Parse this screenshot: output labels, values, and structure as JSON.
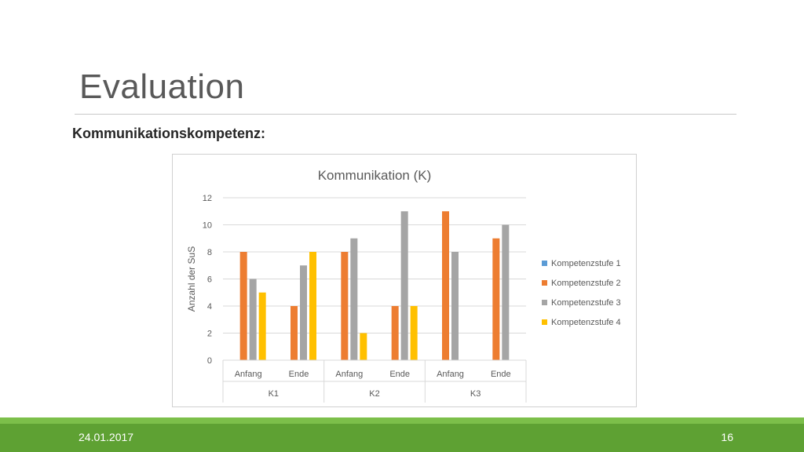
{
  "slide": {
    "title": "Evaluation",
    "subtitle": "Kommunikationskompetenz:",
    "date": "24.01.2017",
    "page_number": "16"
  },
  "colors": {
    "series": [
      "#5b9bd5",
      "#ed7d31",
      "#a5a5a5",
      "#ffc000"
    ],
    "footer": "#5ea133",
    "footer_light": "#7cbf4a"
  },
  "chart_data": {
    "type": "bar",
    "title": "Kommunikation (K)",
    "xlabel": "",
    "ylabel": "Anzahl der SuS",
    "ylim": [
      0,
      12
    ],
    "yticks": [
      0,
      2,
      4,
      6,
      8,
      10,
      12
    ],
    "grid": true,
    "legend_position": "right",
    "groups": [
      {
        "label": "K1",
        "categories": [
          "Anfang",
          "Ende"
        ]
      },
      {
        "label": "K2",
        "categories": [
          "Anfang",
          "Ende"
        ]
      },
      {
        "label": "K3",
        "categories": [
          "Anfang",
          "Ende"
        ]
      }
    ],
    "categories": [
      "Anfang",
      "Ende",
      "Anfang",
      "Ende",
      "Anfang",
      "Ende"
    ],
    "series": [
      {
        "name": "Kompetenzstufe 1",
        "values": [
          0,
          0,
          0,
          0,
          0,
          0
        ]
      },
      {
        "name": "Kompetenzstufe 2",
        "values": [
          8,
          4,
          8,
          4,
          11,
          9
        ]
      },
      {
        "name": "Kompetenzstufe 3",
        "values": [
          6,
          7,
          9,
          11,
          8,
          10
        ]
      },
      {
        "name": "Kompetenzstufe 4",
        "values": [
          5,
          8,
          2,
          4,
          0,
          0
        ]
      }
    ]
  }
}
